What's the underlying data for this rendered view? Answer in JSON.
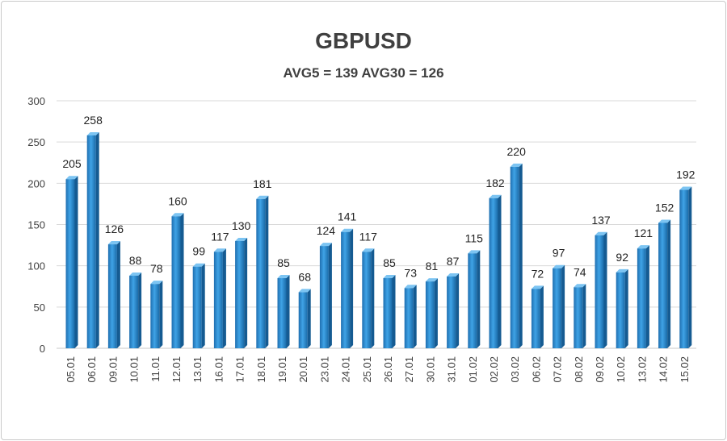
{
  "chart_data": {
    "type": "bar",
    "title": "GBPUSD",
    "subtitle": "AVG5 = 139 AVG30 = 126",
    "xlabel": "",
    "ylabel": "",
    "ylim": [
      0,
      300
    ],
    "yticks": [
      0,
      50,
      100,
      150,
      200,
      250,
      300
    ],
    "grid": true,
    "bar_color": "#2b8fd6",
    "categories": [
      "05.01",
      "06.01",
      "09.01",
      "10.01",
      "11.01",
      "12.01",
      "13.01",
      "16.01",
      "17.01",
      "18.01",
      "19.01",
      "20.01",
      "23.01",
      "24.01",
      "25.01",
      "26.01",
      "27.01",
      "30.01",
      "31.01",
      "01.02",
      "02.02",
      "03.02",
      "06.02",
      "07.02",
      "08.02",
      "09.02",
      "10.02",
      "13.02",
      "14.02",
      "15.02"
    ],
    "values": [
      205,
      258,
      126,
      88,
      78,
      160,
      99,
      117,
      130,
      181,
      85,
      68,
      124,
      141,
      117,
      85,
      73,
      81,
      87,
      115,
      182,
      220,
      72,
      97,
      74,
      137,
      92,
      121,
      152,
      192
    ]
  }
}
